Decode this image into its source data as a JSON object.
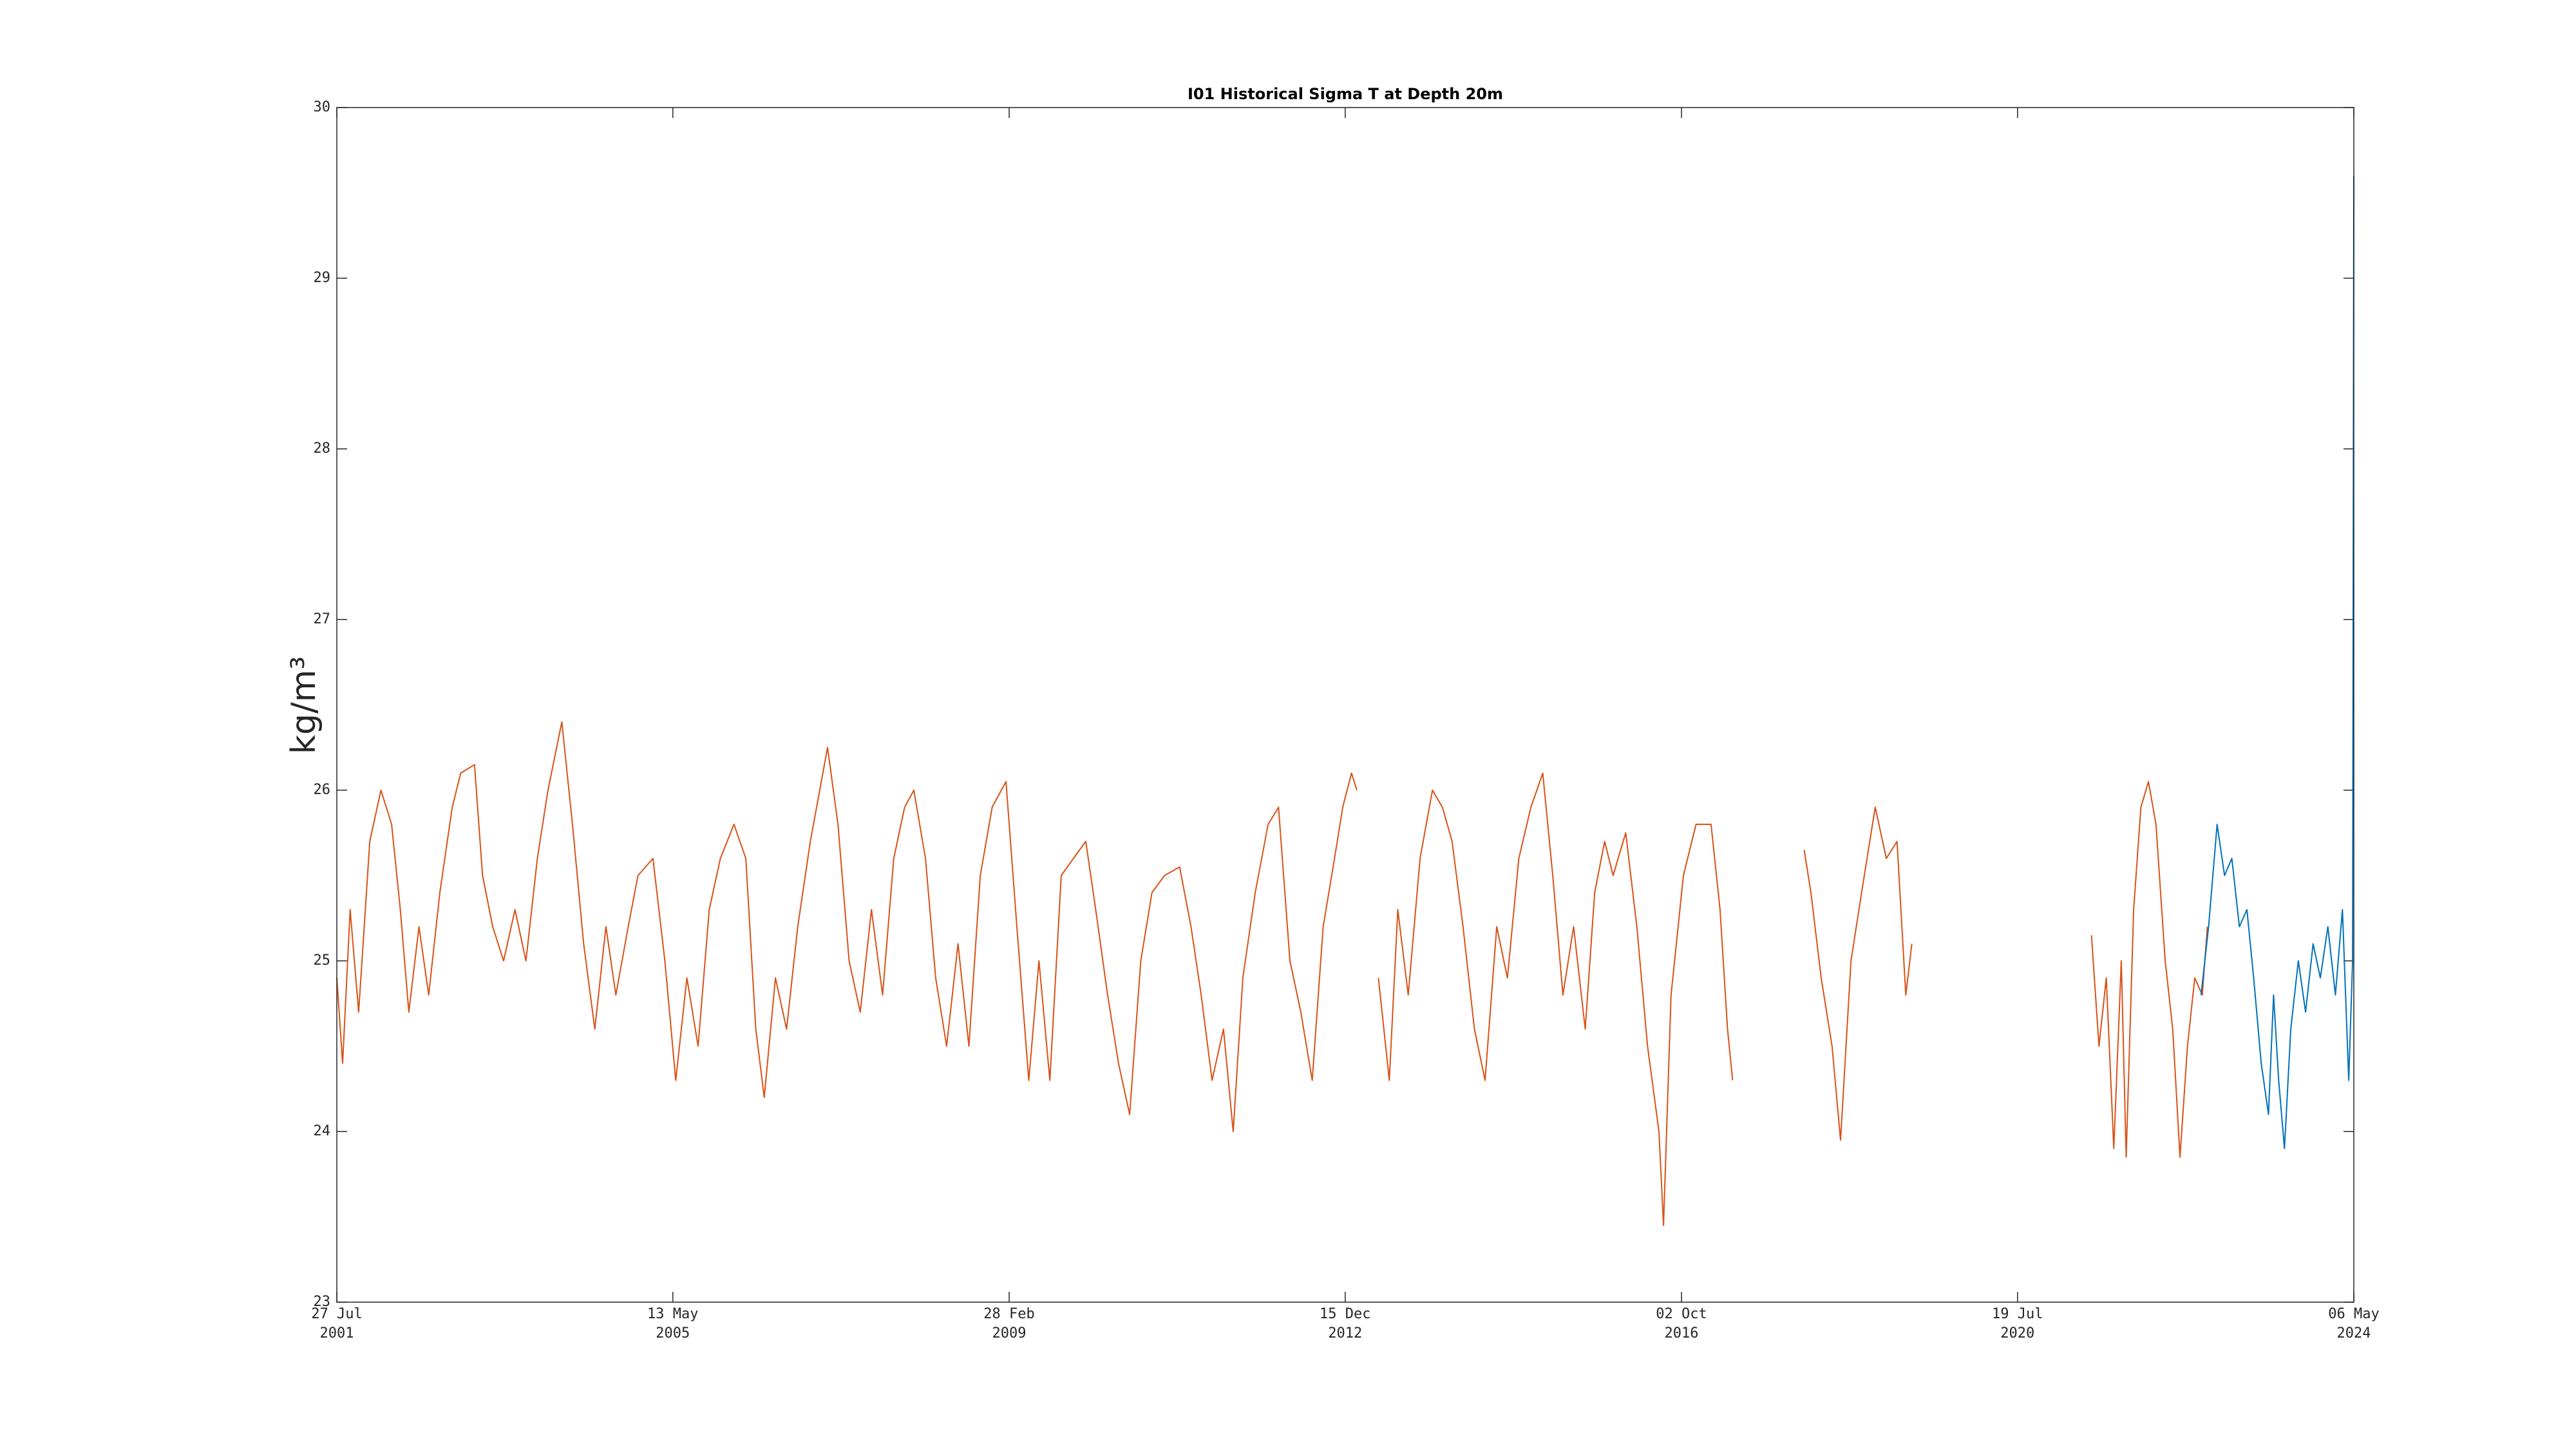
{
  "chart_data": {
    "type": "line",
    "title": "I01 Historical Sigma T at Depth 20m",
    "y_label": "kg/m³",
    "xlim": [
      "2001-07-27",
      "2024-05-06"
    ],
    "xticks": [
      {
        "value": "2001-07-27",
        "label": "27 Jul\n2001"
      },
      {
        "value": "2005-05-13",
        "label": "13 May\n2005"
      },
      {
        "value": "2009-02-28",
        "label": "28 Feb\n2009"
      },
      {
        "value": "2012-12-15",
        "label": "15 Dec\n2012"
      },
      {
        "value": "2016-10-02",
        "label": "02 Oct\n2016"
      },
      {
        "value": "2020-07-19",
        "label": "19 Jul\n2020"
      },
      {
        "value": "2024-05-06",
        "label": "06 May\n2024"
      }
    ],
    "ylim": [
      23,
      30
    ],
    "yticks": [
      23,
      24,
      25,
      26,
      27,
      28,
      29,
      30
    ],
    "grid": false,
    "series": [
      {
        "color": "#D95319",
        "x": [
          "2001-07-27",
          "2001-08-20",
          "2001-09-20",
          "2001-10-25",
          "2001-12-10",
          "2002-01-25",
          "2002-03-10",
          "2002-04-15",
          "2002-05-20",
          "2002-07-01",
          "2002-08-10",
          "2002-09-25",
          "2002-11-15",
          "2002-12-20",
          "2003-02-15",
          "2003-03-20",
          "2003-05-01",
          "2003-06-15",
          "2003-08-01",
          "2003-09-15",
          "2003-11-01",
          "2003-12-15",
          "2004-02-10",
          "2004-03-25",
          "2004-05-10",
          "2004-06-25",
          "2004-08-10",
          "2004-09-20",
          "2004-11-10",
          "2004-12-20",
          "2005-02-20",
          "2005-04-10",
          "2005-05-25",
          "2005-07-10",
          "2005-08-25",
          "2005-10-10",
          "2005-11-25",
          "2006-01-20",
          "2006-03-10",
          "2006-04-20",
          "2006-05-25",
          "2006-07-10",
          "2006-08-25",
          "2006-10-10",
          "2006-12-01",
          "2007-02-10",
          "2007-03-25",
          "2007-05-10",
          "2007-06-25",
          "2007-08-10",
          "2007-09-25",
          "2007-11-10",
          "2007-12-25",
          "2008-02-01",
          "2008-03-20",
          "2008-05-01",
          "2008-06-15",
          "2008-08-01",
          "2008-09-15",
          "2008-11-01",
          "2008-12-20",
          "2009-02-15",
          "2009-04-01",
          "2009-05-20",
          "2009-07-01",
          "2009-08-15",
          "2009-10-01",
          "2009-11-20",
          "2010-01-10",
          "2010-02-20",
          "2010-04-10",
          "2010-05-25",
          "2010-07-10",
          "2010-08-25",
          "2010-10-10",
          "2010-12-01",
          "2011-02-01",
          "2011-03-20",
          "2011-05-01",
          "2011-06-15",
          "2011-08-01",
          "2011-09-10",
          "2011-10-20",
          "2011-12-10",
          "2012-02-01",
          "2012-03-15",
          "2012-05-01",
          "2012-06-15",
          "2012-08-01",
          "2012-09-15",
          "2012-11-01",
          "2012-12-05",
          "2013-01-10",
          "2013-02-01",
          "2013-03-15",
          "2013-05-01",
          "2013-06-15",
          "2013-07-20",
          "2013-09-01",
          "2013-10-20",
          "2013-12-10",
          "2014-01-20",
          "2014-03-01",
          "2014-04-15",
          "2014-06-01",
          "2014-07-15",
          "2014-09-01",
          "2014-10-15",
          "2014-12-01",
          "2015-01-20",
          "2015-03-10",
          "2015-04-20",
          "2015-06-01",
          "2015-07-15",
          "2015-09-01",
          "2015-10-10",
          "2015-11-20",
          "2015-12-25",
          "2016-02-15",
          "2016-04-01",
          "2016-05-15",
          "2016-07-01",
          "2016-07-20",
          "2016-08-20",
          "2016-10-10",
          "2016-12-01",
          "2017-02-01",
          "2017-03-10",
          "2017-04-10",
          "2017-05-01",
          "2017-09-01",
          "2018-02-20",
          "2018-03-20",
          "2018-05-01",
          "2018-06-15",
          "2018-07-20",
          "2018-09-01",
          "2018-10-15",
          "2018-12-10",
          "2019-01-25",
          "2019-03-10",
          "2019-04-15",
          "2019-05-10",
          "2020-02-01",
          "2021-05-20",
          "2021-06-20",
          "2021-07-20",
          "2021-08-20",
          "2021-09-20",
          "2021-10-10",
          "2021-11-10",
          "2021-12-10",
          "2022-01-10",
          "2022-02-10",
          "2022-03-20",
          "2022-04-20",
          "2022-05-20",
          "2022-06-20",
          "2022-07-20",
          "2022-08-20",
          "2022-09-10"
        ],
        "values": [
          24.9,
          24.4,
          25.3,
          24.7,
          25.7,
          26.0,
          25.8,
          25.3,
          24.7,
          25.2,
          24.8,
          25.4,
          25.9,
          26.1,
          26.15,
          25.5,
          25.2,
          25.0,
          25.3,
          25.0,
          25.6,
          26.0,
          26.4,
          25.8,
          25.1,
          24.6,
          25.2,
          24.8,
          25.2,
          25.5,
          25.6,
          25.0,
          24.3,
          24.9,
          24.5,
          25.3,
          25.6,
          25.8,
          25.6,
          24.6,
          24.2,
          24.9,
          24.6,
          25.2,
          25.7,
          26.25,
          25.8,
          25.0,
          24.7,
          25.3,
          24.8,
          25.6,
          25.9,
          26.0,
          25.6,
          24.9,
          24.5,
          25.1,
          24.5,
          25.5,
          25.9,
          26.05,
          25.2,
          24.3,
          25.0,
          24.3,
          25.5,
          25.6,
          25.7,
          25.3,
          24.8,
          24.4,
          24.1,
          25.0,
          25.4,
          25.5,
          25.55,
          25.2,
          24.8,
          24.3,
          24.6,
          24.0,
          24.9,
          25.4,
          25.8,
          25.9,
          25.0,
          24.7,
          24.3,
          25.2,
          25.6,
          25.9,
          26.1,
          26.0,
          null,
          24.9,
          24.3,
          25.3,
          24.8,
          25.6,
          26.0,
          25.9,
          25.7,
          25.2,
          24.6,
          24.3,
          25.2,
          24.9,
          25.6,
          25.9,
          26.1,
          25.5,
          24.8,
          25.2,
          24.6,
          25.4,
          25.7,
          25.5,
          25.75,
          25.2,
          24.5,
          24.0,
          23.45,
          24.8,
          25.5,
          25.8,
          25.8,
          25.3,
          24.6,
          24.3,
          null,
          25.65,
          25.4,
          24.9,
          24.5,
          23.95,
          25.0,
          25.4,
          25.9,
          25.6,
          25.7,
          24.8,
          25.1,
          null,
          25.15,
          24.5,
          24.9,
          23.9,
          25.0,
          23.85,
          25.3,
          25.9,
          26.05,
          25.8,
          25.0,
          24.6,
          23.85,
          24.5,
          24.9,
          24.8,
          25.2
        ]
      },
      {
        "color": "#0072BD",
        "x": [
          "2022-08-15",
          "2022-09-15",
          "2022-10-20",
          "2022-11-20",
          "2022-12-20",
          "2023-01-20",
          "2023-02-20",
          "2023-03-20",
          "2023-04-20",
          "2023-05-20",
          "2023-06-10",
          "2023-07-01",
          "2023-07-25",
          "2023-08-20",
          "2023-09-20",
          "2023-10-20",
          "2023-11-20",
          "2023-12-20",
          "2024-01-20",
          "2024-02-20",
          "2024-03-20",
          "2024-04-15",
          "2024-05-01",
          "2024-05-06"
        ],
        "values": [
          24.8,
          25.2,
          25.8,
          25.5,
          25.6,
          25.2,
          25.3,
          24.9,
          24.4,
          24.1,
          24.8,
          24.3,
          23.9,
          24.6,
          25.0,
          24.7,
          25.1,
          24.9,
          25.2,
          24.8,
          25.3,
          24.3,
          25.0,
          29.6
        ]
      }
    ]
  }
}
